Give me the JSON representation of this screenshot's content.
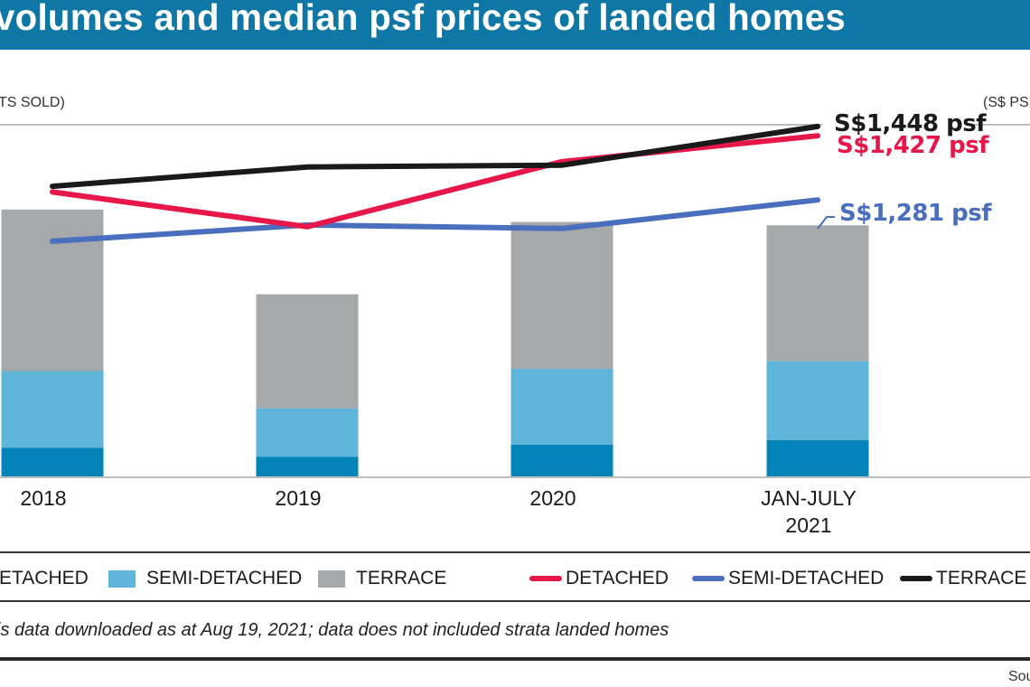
{
  "title": "volumes and median psf prices of landed homes",
  "left_axis_label": "TS SOLD)",
  "right_axis_label": "(S$ PSF",
  "footnote": "is data downloaded as at Aug 19, 2021; data does not included strata landed homes",
  "source_label": "Sou",
  "colors": {
    "title_bar": "#0f77a6",
    "bar_detached": "#0284b8",
    "bar_semi_detached": "#5fb4da",
    "bar_terrace": "#a7a8aa",
    "line_detached": "#e8174a",
    "line_semi_detached": "#4a6fbf",
    "line_terrace": "#1a1a1a"
  },
  "legend": {
    "bar_detached": "ETACHED",
    "bar_semi_detached": "SEMI-DETACHED",
    "bar_terrace": "TERRACE",
    "line_detached": "DETACHED",
    "line_semi_detached": "SEMI-DETACHED",
    "line_terrace": "TERRACE"
  },
  "end_labels": {
    "terrace": "S$1,448 psf",
    "detached": "S$1,427 psf",
    "semi_detached": "S$1,281 psf"
  },
  "chart_data": {
    "type": "bar",
    "title": "volumes and median psf prices of landed homes",
    "categories": [
      "2018",
      "2019",
      "2020",
      "JAN-JULY 2021"
    ],
    "category_lines": [
      [
        "2018"
      ],
      [
        "2019"
      ],
      [
        "2020"
      ],
      [
        "JAN-JULY",
        "2021"
      ]
    ],
    "bars": {
      "stacked": true,
      "axis": "left",
      "ylabel": "(UNITS SOLD)",
      "ylim": [
        0,
        3120
      ],
      "series": [
        {
          "name": "DETACHED",
          "values": [
            260,
            180,
            290,
            330
          ]
        },
        {
          "name": "SEMI-DETACHED",
          "values": [
            680,
            430,
            670,
            700
          ]
        },
        {
          "name": "TERRACE",
          "values": [
            1430,
            1010,
            1300,
            1200
          ]
        }
      ]
    },
    "lines": {
      "axis": "right",
      "ylabel": "(S$ PSF)",
      "ylim": [
        650,
        1452
      ],
      "series": [
        {
          "name": "DETACHED",
          "values": [
            1299,
            1220,
            1368,
            1427
          ]
        },
        {
          "name": "SEMI-DETACHED",
          "values": [
            1187,
            1224,
            1216,
            1281
          ]
        },
        {
          "name": "TERRACE",
          "values": [
            1312,
            1356,
            1360,
            1448
          ]
        }
      ]
    },
    "grid": false,
    "legend_position": "bottom"
  }
}
